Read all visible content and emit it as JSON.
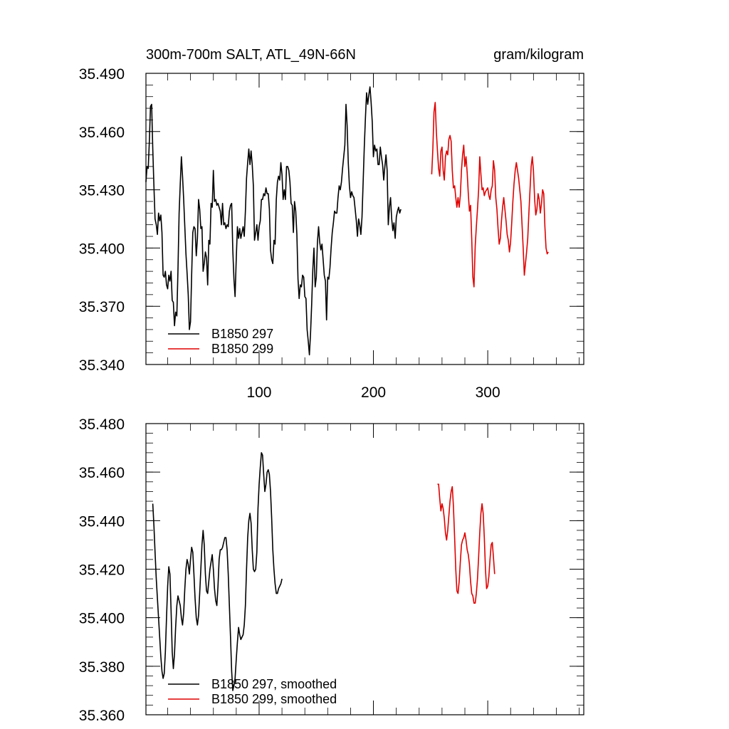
{
  "chart_data": [
    {
      "type": "line",
      "title_left": "300m-700m SALT, ATL_49N-66N",
      "title_right": "gram/kilogram",
      "xlim": [
        1,
        384
      ],
      "ylim": [
        35.34,
        35.49
      ],
      "yticks": [
        "35.490",
        "35.460",
        "35.430",
        "35.400",
        "35.370",
        "35.340"
      ],
      "xticks": [
        "100",
        "200",
        "300"
      ],
      "xlabels_visible": true,
      "series": [
        {
          "name": "B1850 297",
          "color": "#000000",
          "x_start": 1,
          "values": [
            35.434,
            35.442,
            35.441,
            35.455,
            35.473,
            35.474,
            35.451,
            35.432,
            35.415,
            35.412,
            35.407,
            35.418,
            35.414,
            35.417,
            35.408,
            35.386,
            35.385,
            35.388,
            35.381,
            35.379,
            35.386,
            35.383,
            35.388,
            35.373,
            35.372,
            35.36,
            35.367,
            35.365,
            35.389,
            35.418,
            35.433,
            35.447,
            35.437,
            35.425,
            35.411,
            35.397,
            35.387,
            35.376,
            35.358,
            35.362,
            35.386,
            35.408,
            35.411,
            35.41,
            35.396,
            35.405,
            35.425,
            35.42,
            35.41,
            35.411,
            35.388,
            35.392,
            35.398,
            35.395,
            35.381,
            35.404,
            35.402,
            35.423,
            35.421,
            35.44,
            35.424,
            35.425,
            35.422,
            35.423,
            35.421,
            35.419,
            35.412,
            35.423,
            35.412,
            35.413,
            35.41,
            35.412,
            35.411,
            35.419,
            35.422,
            35.423,
            35.399,
            35.384,
            35.375,
            35.395,
            35.411,
            35.405,
            35.41,
            35.405,
            35.408,
            35.411,
            35.406,
            35.419,
            35.436,
            35.444,
            35.451,
            35.443,
            35.45,
            35.443,
            35.432,
            35.404,
            35.408,
            35.412,
            35.404,
            35.411,
            35.414,
            35.425,
            35.425,
            35.428,
            35.427,
            35.431,
            35.428,
            35.428,
            35.42,
            35.399,
            35.394,
            35.392,
            35.404,
            35.402,
            35.425,
            35.434,
            35.437,
            35.435,
            35.444,
            35.438,
            35.425,
            35.43,
            35.425,
            35.442,
            35.442,
            35.44,
            35.434,
            35.423,
            35.422,
            35.408,
            35.424,
            35.419,
            35.407,
            35.384,
            35.374,
            35.381,
            35.38,
            35.386,
            35.385,
            35.375,
            35.374,
            35.358,
            35.352,
            35.345,
            35.356,
            35.371,
            35.389,
            35.4,
            35.38,
            35.385,
            35.403,
            35.411,
            35.403,
            35.399,
            35.402,
            35.394,
            35.386,
            35.383,
            35.363,
            35.385,
            35.384,
            35.39,
            35.4,
            35.408,
            35.413,
            35.419,
            35.418,
            35.418,
            35.426,
            35.432,
            35.43,
            35.434,
            35.441,
            35.447,
            35.453,
            35.474,
            35.463,
            35.444,
            35.432,
            35.426,
            35.429,
            35.427,
            35.426,
            35.42,
            35.414,
            35.406,
            35.415,
            35.412,
            35.407,
            35.416,
            35.434,
            35.452,
            35.467,
            35.48,
            35.474,
            35.479,
            35.483,
            35.475,
            35.465,
            35.447,
            35.453,
            35.45,
            35.451,
            35.443,
            35.443,
            35.452,
            35.447,
            35.443,
            35.435,
            35.442,
            35.448,
            35.44,
            35.412,
            35.421,
            35.426,
            35.415,
            35.409,
            35.413,
            35.405,
            35.416,
            35.419,
            35.421,
            35.418,
            35.42
          ]
        },
        {
          "name": "B1850 299",
          "color": "#e00000",
          "x_start": 251,
          "values": [
            35.438,
            35.451,
            35.47,
            35.475,
            35.46,
            35.45,
            35.441,
            35.437,
            35.45,
            35.452,
            35.44,
            35.435,
            35.447,
            35.45,
            35.448,
            35.456,
            35.458,
            35.455,
            35.44,
            35.431,
            35.432,
            35.426,
            35.421,
            35.426,
            35.421,
            35.427,
            35.44,
            35.448,
            35.453,
            35.442,
            35.447,
            35.439,
            35.428,
            35.419,
            35.422,
            35.405,
            35.385,
            35.38,
            35.401,
            35.411,
            35.42,
            35.43,
            35.447,
            35.438,
            35.43,
            35.431,
            35.427,
            35.429,
            35.43,
            35.431,
            35.427,
            35.425,
            35.43,
            35.432,
            35.445,
            35.44,
            35.426,
            35.42,
            35.41,
            35.402,
            35.405,
            35.414,
            35.421,
            35.426,
            35.42,
            35.414,
            35.407,
            35.404,
            35.398,
            35.403,
            35.413,
            35.424,
            35.433,
            35.44,
            35.444,
            35.44,
            35.436,
            35.43,
            35.424,
            35.412,
            35.4,
            35.386,
            35.392,
            35.398,
            35.405,
            35.418,
            35.43,
            35.442,
            35.447,
            35.44,
            35.425,
            35.417,
            35.42,
            35.428,
            35.425,
            35.418,
            35.423,
            35.43,
            35.428,
            35.411,
            35.4,
            35.397,
            35.398
          ]
        }
      ],
      "legend": [
        "B1850 297",
        "B1850 299"
      ],
      "legend_position": "bottom-left"
    },
    {
      "type": "line",
      "xlim": [
        1,
        384
      ],
      "ylim": [
        35.36,
        35.48
      ],
      "yticks": [
        "35.480",
        "35.460",
        "35.440",
        "35.420",
        "35.400",
        "35.380",
        "35.360"
      ],
      "xticks": [
        "100",
        "200",
        "300"
      ],
      "xlabels_visible": false,
      "series": [
        {
          "name": "B1850 297, smoothed",
          "color": "#000000",
          "x_start": 7,
          "values": [
            35.447,
            35.438,
            35.427,
            35.416,
            35.408,
            35.4,
            35.392,
            35.384,
            35.378,
            35.375,
            35.377,
            35.386,
            35.4,
            35.413,
            35.421,
            35.418,
            35.403,
            35.386,
            35.379,
            35.385,
            35.396,
            35.405,
            35.409,
            35.407,
            35.405,
            35.4,
            35.397,
            35.402,
            35.412,
            35.42,
            35.424,
            35.422,
            35.418,
            35.424,
            35.429,
            35.427,
            35.418,
            35.408,
            35.4,
            35.397,
            35.401,
            35.41,
            35.42,
            35.43,
            35.436,
            35.43,
            35.418,
            35.411,
            35.41,
            35.415,
            35.42,
            35.423,
            35.426,
            35.42,
            35.412,
            35.407,
            35.405,
            35.413,
            35.424,
            35.428,
            35.428,
            35.429,
            35.431,
            35.433,
            35.433,
            35.428,
            35.418,
            35.405,
            35.392,
            35.378,
            35.37,
            35.372,
            35.375,
            35.383,
            35.39,
            35.396,
            35.393,
            35.391,
            35.392,
            35.393,
            35.397,
            35.405,
            35.42,
            35.433,
            35.44,
            35.443,
            35.439,
            35.428,
            35.42,
            35.419,
            35.42,
            35.427,
            35.445,
            35.455,
            35.462,
            35.468,
            35.467,
            35.459,
            35.452,
            35.455,
            35.46,
            35.461,
            35.459,
            35.452,
            35.441,
            35.428,
            35.42,
            35.414,
            35.41,
            35.41,
            35.412,
            35.413,
            35.414,
            35.416
          ]
        },
        {
          "name": "B1850 299, smoothed",
          "color": "#e00000",
          "x_start": 256,
          "values": [
            35.455,
            35.455,
            35.449,
            35.444,
            35.447,
            35.445,
            35.441,
            35.435,
            35.432,
            35.436,
            35.442,
            35.448,
            35.452,
            35.454,
            35.446,
            35.433,
            35.42,
            35.411,
            35.41,
            35.415,
            35.423,
            35.43,
            35.432,
            35.433,
            35.435,
            35.432,
            35.428,
            35.426,
            35.422,
            35.415,
            35.41,
            35.409,
            35.406,
            35.406,
            35.41,
            35.416,
            35.425,
            35.435,
            35.443,
            35.447,
            35.443,
            35.433,
            35.42,
            35.412,
            35.413,
            35.417,
            35.424,
            35.43,
            35.431,
            35.425,
            35.418
          ]
        }
      ],
      "legend": [
        "B1850 297, smoothed",
        "B1850 299, smoothed"
      ],
      "legend_position": "bottom-left"
    }
  ]
}
